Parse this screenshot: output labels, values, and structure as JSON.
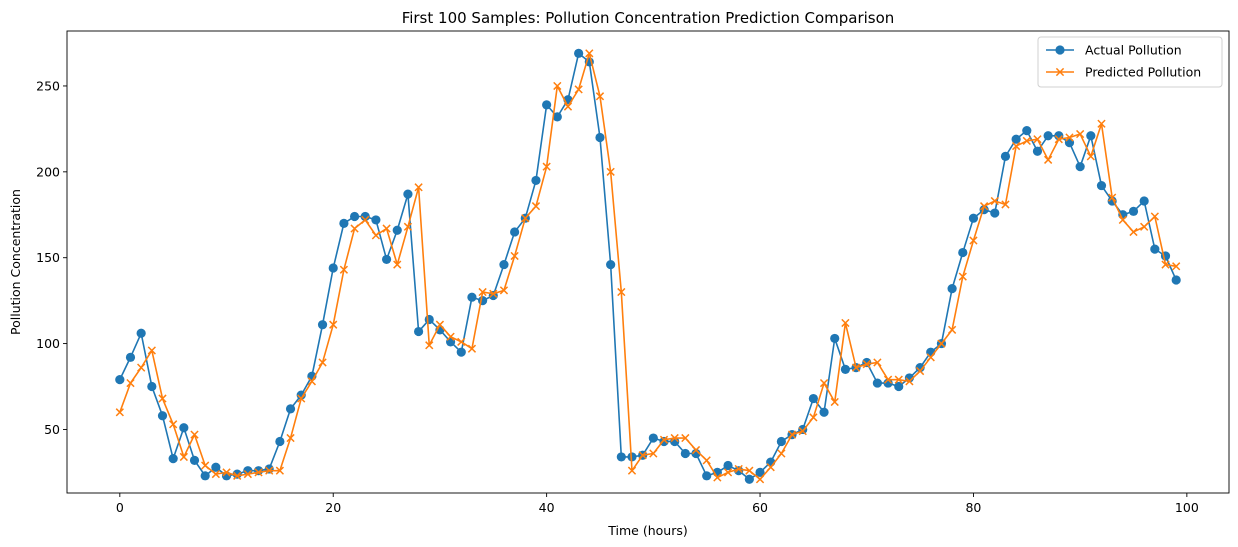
{
  "chart_data": {
    "type": "line",
    "title": "First 100 Samples: Pollution Concentration Prediction Comparison",
    "xlabel": "Time (hours)",
    "ylabel": "Pollution Concentration",
    "xlim": [
      -4.95,
      103.95
    ],
    "ylim": [
      13,
      282
    ],
    "xticks": [
      0,
      20,
      40,
      60,
      80,
      100
    ],
    "yticks": [
      50,
      100,
      150,
      200,
      250
    ],
    "grid": false,
    "legend_position": "top-right",
    "x": [
      0,
      1,
      2,
      3,
      4,
      5,
      6,
      7,
      8,
      9,
      10,
      11,
      12,
      13,
      14,
      15,
      16,
      17,
      18,
      19,
      20,
      21,
      22,
      23,
      24,
      25,
      26,
      27,
      28,
      29,
      30,
      31,
      32,
      33,
      34,
      35,
      36,
      37,
      38,
      39,
      40,
      41,
      42,
      43,
      44,
      45,
      46,
      47,
      48,
      49,
      50,
      51,
      52,
      53,
      54,
      55,
      56,
      57,
      58,
      59,
      60,
      61,
      62,
      63,
      64,
      65,
      66,
      67,
      68,
      69,
      70,
      71,
      72,
      73,
      74,
      75,
      76,
      77,
      78,
      79,
      80,
      81,
      82,
      83,
      84,
      85,
      86,
      87,
      88,
      89,
      90,
      91,
      92,
      93,
      94,
      95,
      96,
      97,
      98,
      99
    ],
    "series": [
      {
        "name": "Actual Pollution",
        "color": "#1f77b4",
        "marker": "circle",
        "values": [
          79,
          92,
          106,
          75,
          58,
          33,
          51,
          32,
          23,
          28,
          23,
          24,
          26,
          26,
          27,
          43,
          62,
          70,
          81,
          111,
          144,
          170,
          174,
          174,
          172,
          149,
          166,
          187,
          107,
          114,
          108,
          101,
          95,
          127,
          125,
          128,
          146,
          165,
          173,
          195,
          239,
          232,
          242,
          269,
          264,
          220,
          146,
          34,
          34,
          35,
          45,
          43,
          43,
          36,
          36,
          23,
          25,
          29,
          26,
          21,
          25,
          31,
          43,
          47,
          50,
          68,
          60,
          103,
          85,
          86,
          89,
          77,
          77,
          75,
          80,
          86,
          95,
          100,
          132,
          153,
          173,
          178,
          176,
          209,
          219,
          224,
          212,
          221,
          221,
          217,
          203,
          221,
          192,
          183,
          175,
          177,
          183,
          155,
          151,
          137
        ]
      },
      {
        "name": "Predicted Pollution",
        "color": "#ff7f0e",
        "marker": "x",
        "values": [
          60,
          77,
          86,
          96,
          68,
          53,
          34,
          47,
          29,
          24,
          25,
          23,
          24,
          25,
          26,
          26,
          45,
          68,
          78,
          89,
          111,
          143,
          167,
          172,
          163,
          167,
          146,
          168,
          191,
          99,
          111,
          104,
          101,
          97,
          130,
          129,
          131,
          151,
          173,
          180,
          203,
          250,
          238,
          248,
          269,
          244,
          200,
          130,
          26,
          35,
          36,
          44,
          45,
          45,
          38,
          32,
          22,
          25,
          27,
          26,
          21,
          28,
          36,
          47,
          49,
          57,
          77,
          66,
          112,
          86,
          88,
          89,
          79,
          79,
          78,
          84,
          92,
          100,
          108,
          139,
          160,
          180,
          183,
          181,
          215,
          218,
          219,
          207,
          219,
          220,
          222,
          209,
          228,
          185,
          172,
          165,
          168,
          174,
          146,
          145
        ]
      }
    ]
  }
}
